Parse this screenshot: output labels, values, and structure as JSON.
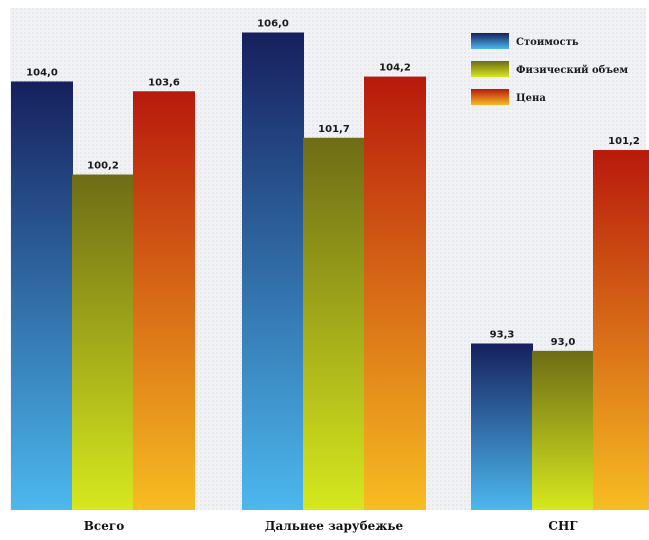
{
  "chart_data": {
    "type": "bar",
    "categories": [
      "Всего",
      "Дальнее зарубежье",
      "СНГ"
    ],
    "series": [
      {
        "name": "Стоимость",
        "values": [
          104.0,
          106.0,
          93.3
        ],
        "labels": [
          "104,0",
          "106,0",
          "93,3"
        ],
        "color_top": "#16205e",
        "color_bottom": "#4cb8ee"
      },
      {
        "name": "Физический объем",
        "values": [
          100.2,
          101.7,
          93.0
        ],
        "labels": [
          "100,2",
          "101,7",
          "93,0"
        ],
        "color_top": "#6e6c16",
        "color_bottom": "#d6e81e"
      },
      {
        "name": "Цена",
        "values": [
          103.6,
          104.2,
          101.2
        ],
        "labels": [
          "103,6",
          "104,2",
          "101,2"
        ],
        "color_top": "#b8190c",
        "color_bottom": "#f7bd22"
      }
    ],
    "ylim": [
      86.5,
      107.0
    ],
    "legend_position": "top-right",
    "background": "#f1f2f5",
    "grid": false
  }
}
